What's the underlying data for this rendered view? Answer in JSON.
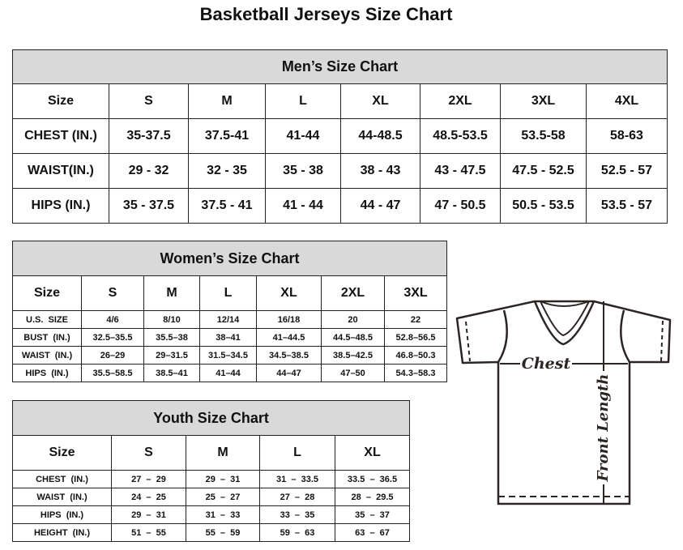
{
  "title": "Basketball Jerseys Size Chart",
  "men": {
    "caption": "Men’s Size Chart",
    "header": [
      "Size",
      "S",
      "M",
      "L",
      "XL",
      "2XL",
      "3XL",
      "4XL"
    ],
    "rows": [
      [
        "CHEST (IN.)",
        "35-37.5",
        "37.5-41",
        "41-44",
        "44-48.5",
        "48.5-53.5",
        "53.5-58",
        "58-63"
      ],
      [
        "WAIST(IN.)",
        "29 - 32",
        "32 - 35",
        "35 - 38",
        "38 - 43",
        "43 - 47.5",
        "47.5 - 52.5",
        "52.5 - 57"
      ],
      [
        "HIPS (IN.)",
        "35 - 37.5",
        "37.5 - 41",
        "41 - 44",
        "44 - 47",
        "47 - 50.5",
        "50.5 - 53.5",
        "53.5 - 57"
      ]
    ]
  },
  "women": {
    "caption": "Women’s Size Chart",
    "header": [
      "Size",
      "S",
      "M",
      "L",
      "XL",
      "2XL",
      "3XL"
    ],
    "rows": [
      [
        "U.S.  SIZE",
        "4/6",
        "8/10",
        "12/14",
        "16/18",
        "20",
        "22"
      ],
      [
        "BUST  (IN.)",
        "32.5–35.5",
        "35.5–38",
        "38–41",
        "41–44.5",
        "44.5–48.5",
        "52.8–56.5"
      ],
      [
        "WAIST  (IN.)",
        "26–29",
        "29–31.5",
        "31.5–34.5",
        "34.5–38.5",
        "38.5–42.5",
        "46.8–50.3"
      ],
      [
        "HIPS  (IN.)",
        "35.5–58.5",
        "38.5–41",
        "41–44",
        "44–47",
        "47–50",
        "54.3–58.3"
      ]
    ]
  },
  "youth": {
    "caption": "Youth Size Chart",
    "header": [
      "Size",
      "S",
      "M",
      "L",
      "XL"
    ],
    "rows": [
      [
        "CHEST  (IN.)",
        "27  –  29",
        "29  –  31",
        "31  –  33.5",
        "33.5  –  36.5"
      ],
      [
        "WAIST  (IN.)",
        "24  –  25",
        "25  –  27",
        "27  –  28",
        "28  –  29.5"
      ],
      [
        "HIPS  (IN.)",
        "29  –  31",
        "31  –  33",
        "33  –  35",
        "35  –  37"
      ],
      [
        "HEIGHT  (IN.)",
        "51  –  55",
        "55  –  59",
        "59  –  63",
        "63  –  67"
      ]
    ]
  },
  "diagram": {
    "chest_label": "Chest",
    "length_label": "Front Length"
  }
}
